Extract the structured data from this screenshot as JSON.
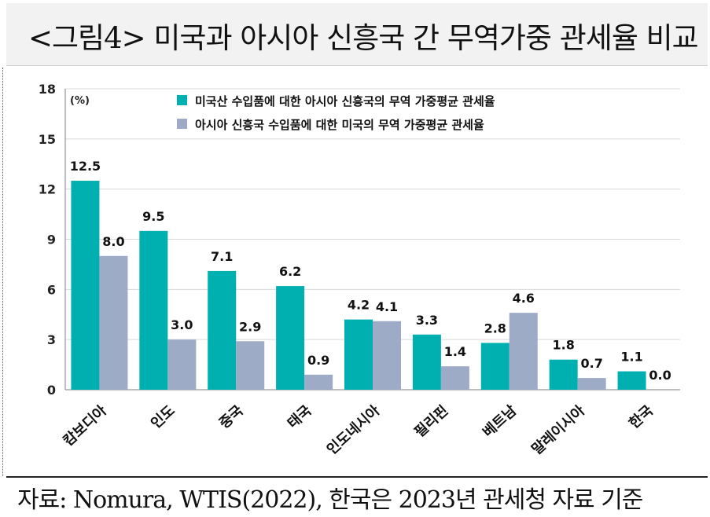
{
  "title": "<그림4> 미국과 아시아 신흥국 간 무역가중 관세율 비교",
  "source": "자료: Nomura, WTIS(2022), 한국은 2023년 관세청 자료 기준",
  "chart_data": {
    "type": "bar",
    "unit_label": "(%)",
    "categories": [
      "캄보디아",
      "인도",
      "중국",
      "태국",
      "인도네시아",
      "필리핀",
      "베트남",
      "말레이시아",
      "한국"
    ],
    "series": [
      {
        "name": "미국산 수입품에 대한 아시아 신흥국의 무역 가중평균 관세율",
        "color": "#00b0b0",
        "values": [
          12.5,
          9.5,
          7.1,
          6.2,
          4.2,
          3.3,
          2.8,
          1.8,
          1.1
        ],
        "labels": [
          "12.5",
          "9.5",
          "7.1",
          "6.2",
          "4.2",
          "3.3",
          "2.8",
          "1.8",
          "1.1"
        ]
      },
      {
        "name": "아시아 신흥국 수입품에 대한 미국의 무역 가중평균 관세율",
        "color": "#9eabc6",
        "values": [
          8.0,
          3.0,
          2.9,
          0.9,
          4.1,
          1.4,
          4.6,
          0.7,
          0.0
        ],
        "labels": [
          "8.0",
          "3.0",
          "2.9",
          "0.9",
          "4.1",
          "1.4",
          "4.6",
          "0.7",
          "0.0"
        ]
      }
    ],
    "ylim": [
      0,
      18
    ],
    "yticks": [
      "0",
      "3",
      "6",
      "9",
      "12",
      "15",
      "18"
    ],
    "grid": true,
    "legend_position": "top"
  }
}
